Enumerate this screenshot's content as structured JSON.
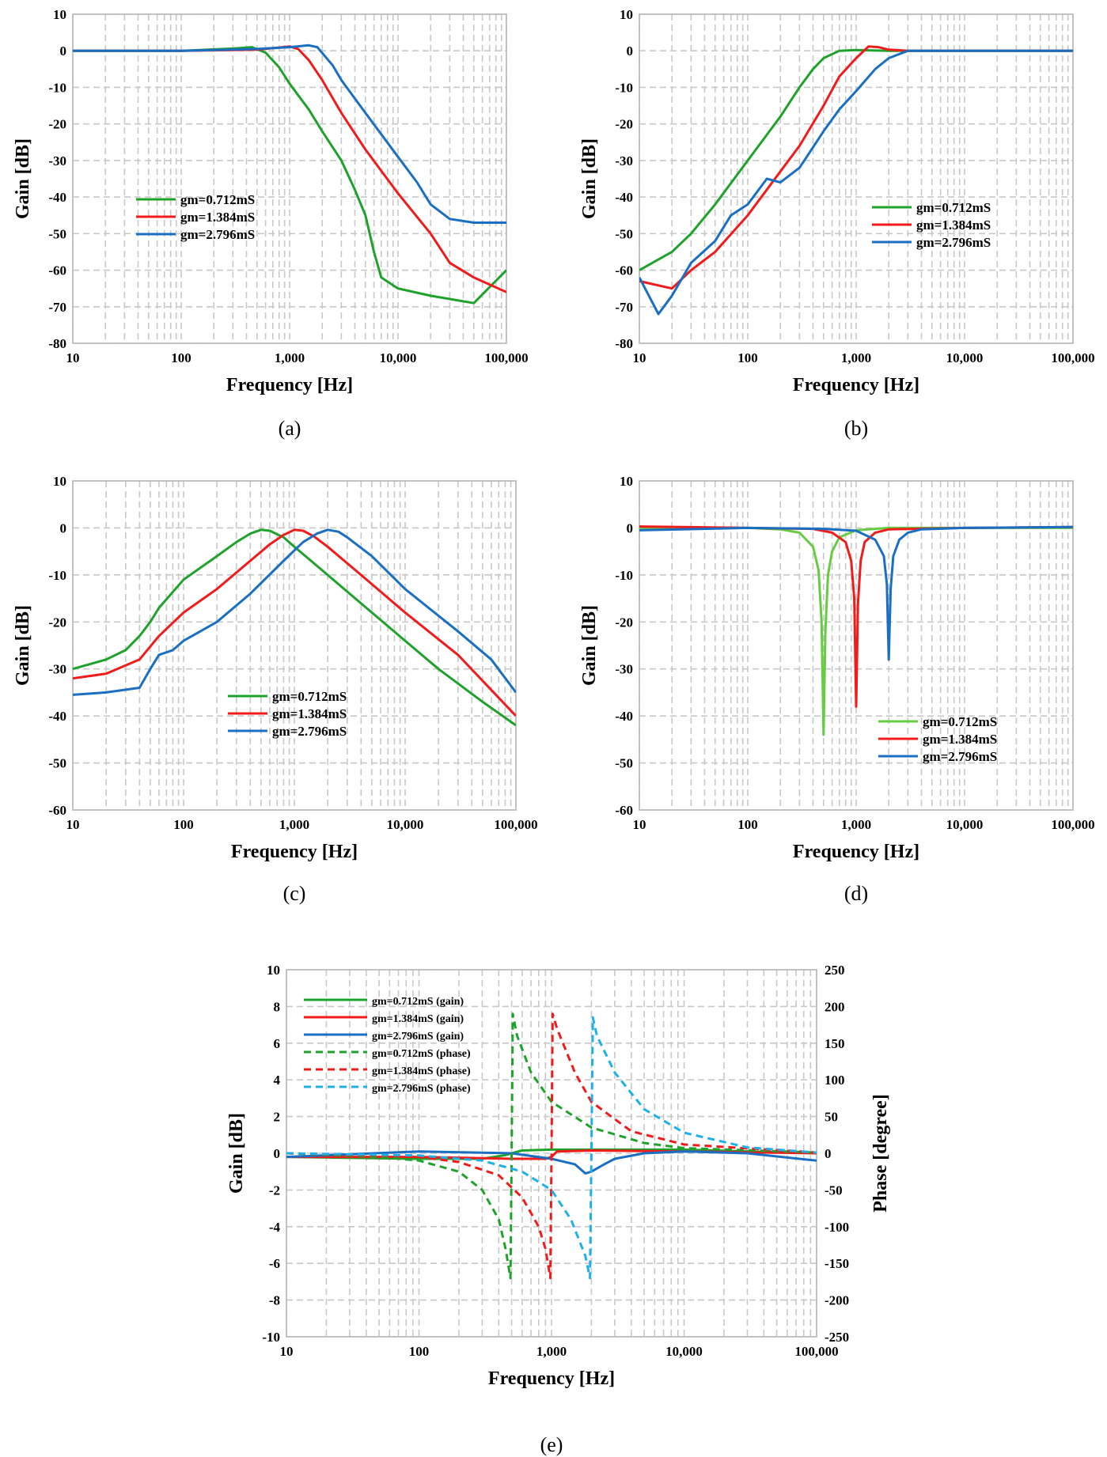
{
  "colors": {
    "green": "#1fa22b",
    "lightgreen": "#66cc44",
    "red": "#f01c1c",
    "blue": "#1b6fc2",
    "cyan": "#1fb0e8",
    "grid": "#c8c8c8",
    "frame": "#bdbdbd"
  },
  "chart_data": [
    {
      "id": "a",
      "type": "line",
      "panel_label": "(a)",
      "xlabel": "Frequency [Hz]",
      "ylabel": "Gain [dB]",
      "x_scale": "log",
      "xlim": [
        10,
        100000
      ],
      "ylim": [
        -80,
        10
      ],
      "x_ticks": [
        "10",
        "100",
        "1,000",
        "10,000",
        "100,000"
      ],
      "y_ticks": [
        "10",
        "0",
        "-10",
        "-20",
        "-30",
        "-40",
        "-50",
        "-60",
        "-70",
        "-80"
      ],
      "legend_position": "center-left",
      "series": [
        {
          "name": "gm=0.712mS",
          "color": "green",
          "dash": false,
          "x": [
            10,
            100,
            300,
            450,
            600,
            800,
            1000,
            1500,
            2000,
            3000,
            4000,
            5000,
            6000,
            7000,
            10000,
            20000,
            50000,
            100000
          ],
          "y": [
            0,
            0,
            0.6,
            1.0,
            -0.5,
            -4.5,
            -9,
            -16,
            -22,
            -30,
            -38,
            -45,
            -55,
            -62,
            -65,
            -67,
            -69,
            -60
          ]
        },
        {
          "name": "gm=1.384mS",
          "color": "red",
          "dash": false,
          "x": [
            10,
            100,
            500,
            800,
            1000,
            1200,
            1500,
            2000,
            3000,
            5000,
            10000,
            20000,
            30000,
            50000,
            100000
          ],
          "y": [
            0,
            0,
            0.3,
            0.9,
            1.2,
            0.5,
            -2.5,
            -8,
            -17,
            -27,
            -39,
            -50,
            -58,
            -62,
            -66
          ]
        },
        {
          "name": "gm=2.796mS",
          "color": "blue",
          "dash": false,
          "x": [
            10,
            100,
            500,
            1000,
            1500,
            1800,
            2500,
            3000,
            5000,
            10000,
            15000,
            20000,
            30000,
            50000,
            100000
          ],
          "y": [
            0,
            0,
            0.5,
            1.0,
            1.5,
            1.0,
            -4,
            -8,
            -17,
            -29,
            -36,
            -42,
            -46,
            -47,
            -47
          ]
        }
      ]
    },
    {
      "id": "b",
      "type": "line",
      "panel_label": "(b)",
      "xlabel": "Frequency [Hz]",
      "ylabel": "Gain [dB]",
      "x_scale": "log",
      "xlim": [
        10,
        100000
      ],
      "ylim": [
        -80,
        10
      ],
      "x_ticks": [
        "10",
        "100",
        "1,000",
        "10,000",
        "100,000"
      ],
      "y_ticks": [
        "10",
        "0",
        "-10",
        "-20",
        "-30",
        "-40",
        "-50",
        "-60",
        "-70",
        "-80"
      ],
      "legend_position": "center-right",
      "series": [
        {
          "name": "gm=0.712mS",
          "color": "green",
          "dash": false,
          "x": [
            10,
            20,
            30,
            50,
            100,
            200,
            300,
            400,
            500,
            700,
            1000,
            2000,
            100000
          ],
          "y": [
            -60,
            -55,
            -50,
            -42,
            -30,
            -18,
            -10,
            -5,
            -2,
            0,
            0.2,
            0,
            0
          ]
        },
        {
          "name": "gm=1.384mS",
          "color": "red",
          "dash": false,
          "x": [
            10,
            20,
            30,
            50,
            100,
            200,
            300,
            500,
            700,
            1000,
            1300,
            1600,
            2000,
            3000,
            100000
          ],
          "y": [
            -63,
            -65,
            -60,
            -55,
            -45,
            -33,
            -26,
            -15,
            -7,
            -2,
            1.2,
            1.0,
            0.3,
            0,
            0
          ]
        },
        {
          "name": "gm=2.796mS",
          "color": "blue",
          "dash": false,
          "x": [
            10,
            15,
            20,
            30,
            50,
            70,
            100,
            150,
            200,
            300,
            500,
            700,
            1000,
            1500,
            2000,
            3000,
            5000,
            100000
          ],
          "y": [
            -62,
            -72,
            -67,
            -58,
            -52,
            -45,
            -42,
            -35,
            -36,
            -32,
            -22,
            -16,
            -11,
            -5,
            -2,
            0,
            0,
            0
          ]
        }
      ]
    },
    {
      "id": "c",
      "type": "line",
      "panel_label": "(c)",
      "xlabel": "Frequency [Hz]",
      "ylabel": "Gain [dB]",
      "x_scale": "log",
      "xlim": [
        10,
        100000
      ],
      "ylim": [
        -60,
        10
      ],
      "x_ticks": [
        "10",
        "100",
        "1,000",
        "10,000",
        "100,000"
      ],
      "y_ticks": [
        "10",
        "0",
        "-10",
        "-20",
        "-30",
        "-40",
        "-50",
        "-60"
      ],
      "legend_position": "center",
      "series": [
        {
          "name": "gm=0.712mS",
          "color": "green",
          "dash": false,
          "x": [
            10,
            20,
            30,
            40,
            50,
            60,
            100,
            200,
            300,
            400,
            500,
            600,
            800,
            1000,
            2000,
            5000,
            10000,
            20000,
            50000,
            100000
          ],
          "y": [
            -30,
            -28,
            -26,
            -23,
            -20,
            -17,
            -11,
            -6,
            -3,
            -1.2,
            -0.4,
            -0.6,
            -2,
            -4,
            -10,
            -18,
            -24,
            -30,
            -37,
            -42
          ]
        },
        {
          "name": "gm=1.384mS",
          "color": "red",
          "dash": false,
          "x": [
            10,
            20,
            40,
            60,
            100,
            200,
            400,
            600,
            800,
            1000,
            1200,
            1500,
            2000,
            4000,
            10000,
            30000,
            100000
          ],
          "y": [
            -32,
            -31,
            -28,
            -23,
            -18,
            -13,
            -7,
            -3.5,
            -1.5,
            -0.4,
            -0.6,
            -1.8,
            -4,
            -10,
            -18,
            -27,
            -40
          ]
        },
        {
          "name": "gm=2.796mS",
          "color": "blue",
          "dash": false,
          "x": [
            10,
            20,
            40,
            50,
            60,
            80,
            100,
            200,
            400,
            800,
            1200,
            1600,
            2000,
            2500,
            3000,
            5000,
            10000,
            30000,
            60000,
            100000
          ],
          "y": [
            -35.5,
            -35,
            -34,
            -30,
            -27,
            -26,
            -24,
            -20,
            -14,
            -7,
            -3,
            -1.2,
            -0.4,
            -0.8,
            -2,
            -6,
            -13,
            -22,
            -28,
            -35
          ]
        }
      ]
    },
    {
      "id": "d",
      "type": "line",
      "panel_label": "(d)",
      "xlabel": "Frequency [Hz]",
      "ylabel": "Gain [dB]",
      "x_scale": "log",
      "xlim": [
        10,
        100000
      ],
      "ylim": [
        -60,
        10
      ],
      "x_ticks": [
        "10",
        "100",
        "1,000",
        "10,000",
        "100,000"
      ],
      "y_ticks": [
        "10",
        "0",
        "-10",
        "-20",
        "-30",
        "-40",
        "-50",
        "-60"
      ],
      "legend_position": "bottom-center",
      "series": [
        {
          "name": "gm=0.712mS",
          "color": "lightgreen",
          "dash": false,
          "x": [
            10,
            100,
            200,
            300,
            400,
            450,
            480,
            500,
            520,
            550,
            600,
            700,
            1000,
            2000,
            100000
          ],
          "y": [
            0,
            0,
            -0.3,
            -1,
            -4,
            -9,
            -20,
            -44,
            -22,
            -10,
            -5,
            -2,
            -0.5,
            0,
            0
          ]
        },
        {
          "name": "gm=1.384mS",
          "color": "red",
          "dash": false,
          "x": [
            10,
            100,
            400,
            600,
            800,
            900,
            960,
            1000,
            1040,
            1100,
            1200,
            1500,
            2000,
            10000,
            100000
          ],
          "y": [
            0.3,
            0,
            -0.2,
            -1,
            -3,
            -7,
            -15,
            -38,
            -16,
            -7,
            -3,
            -1,
            -0.3,
            0,
            0.2
          ]
        },
        {
          "name": "gm=2.796mS",
          "color": "blue",
          "dash": false,
          "x": [
            10,
            100,
            500,
            1000,
            1500,
            1800,
            1920,
            2000,
            2080,
            2200,
            2500,
            3000,
            4000,
            10000,
            100000
          ],
          "y": [
            -0.5,
            0,
            -0.2,
            -0.6,
            -2.5,
            -6,
            -12,
            -28,
            -13,
            -6,
            -2.5,
            -1,
            -0.3,
            0,
            0.2
          ]
        }
      ]
    },
    {
      "id": "e",
      "type": "line",
      "panel_label": "(e)",
      "xlabel": "Frequency [Hz]",
      "ylabel": "Gain [dB]",
      "y2label": "Phase [degree]",
      "x_scale": "log",
      "xlim": [
        10,
        100000
      ],
      "ylim": [
        -10,
        10
      ],
      "y2lim": [
        -250,
        250
      ],
      "x_ticks": [
        "10",
        "100",
        "1,000",
        "10,000",
        "100,000"
      ],
      "y_ticks": [
        "10",
        "8",
        "6",
        "4",
        "2",
        "0",
        "-2",
        "-4",
        "-6",
        "-8",
        "-10"
      ],
      "y2_ticks": [
        "250",
        "200",
        "150",
        "100",
        "50",
        "0",
        "-50",
        "-100",
        "-150",
        "-200",
        "-250"
      ],
      "legend_position": "top-left",
      "series": [
        {
          "name": "gm=0.712mS (gain)",
          "color": "green",
          "dash": false,
          "axis": "left",
          "x": [
            10,
            100,
            300,
            450,
            500,
            600,
            1000,
            10000,
            100000
          ],
          "y": [
            -0.2,
            -0.3,
            -0.3,
            -0.1,
            0.0,
            0.15,
            0.2,
            0.2,
            0.0
          ]
        },
        {
          "name": "gm=1.384mS (gain)",
          "color": "red",
          "dash": false,
          "axis": "left",
          "x": [
            10,
            100,
            500,
            900,
            1000,
            1100,
            2000,
            10000,
            100000
          ],
          "y": [
            -0.2,
            -0.2,
            -0.3,
            -0.3,
            -0.2,
            0.1,
            0.15,
            0.1,
            0.0
          ]
        },
        {
          "name": "gm=2.796mS (gain)",
          "color": "blue",
          "dash": false,
          "axis": "left",
          "x": [
            10,
            100,
            500,
            1000,
            1500,
            1800,
            2000,
            2500,
            3000,
            5000,
            10000,
            30000,
            100000
          ],
          "y": [
            -0.2,
            0.1,
            0.0,
            -0.3,
            -0.6,
            -1.1,
            -1.0,
            -0.6,
            -0.3,
            0.0,
            0.1,
            0.0,
            -0.4
          ]
        },
        {
          "name": "gm=0.712mS (phase)",
          "color": "green",
          "dash": true,
          "axis": "right",
          "x": [
            10,
            50,
            100,
            200,
            300,
            400,
            450,
            490,
            500,
            510,
            550,
            700,
            1000,
            2000,
            5000,
            10000,
            100000
          ],
          "y": [
            0,
            -5,
            -10,
            -25,
            -50,
            -90,
            -130,
            -170,
            0,
            190,
            160,
            110,
            70,
            35,
            14,
            7,
            1
          ]
        },
        {
          "name": "gm=1.384mS (phase)",
          "color": "red",
          "dash": true,
          "axis": "right",
          "x": [
            10,
            50,
            100,
            200,
            400,
            600,
            800,
            900,
            980,
            1000,
            1020,
            1100,
            1500,
            2000,
            4000,
            10000,
            100000
          ],
          "y": [
            0,
            -3,
            -5,
            -12,
            -30,
            -60,
            -100,
            -130,
            -170,
            0,
            190,
            170,
            110,
            70,
            30,
            12,
            1
          ]
        },
        {
          "name": "gm=2.796mS (phase)",
          "color": "cyan",
          "dash": true,
          "axis": "right",
          "x": [
            10,
            100,
            300,
            600,
            1000,
            1400,
            1800,
            1950,
            2000,
            2050,
            2200,
            3000,
            5000,
            10000,
            30000,
            100000
          ],
          "y": [
            0,
            -3,
            -10,
            -25,
            -50,
            -90,
            -140,
            -170,
            0,
            185,
            160,
            110,
            60,
            28,
            8,
            1
          ]
        }
      ]
    }
  ]
}
